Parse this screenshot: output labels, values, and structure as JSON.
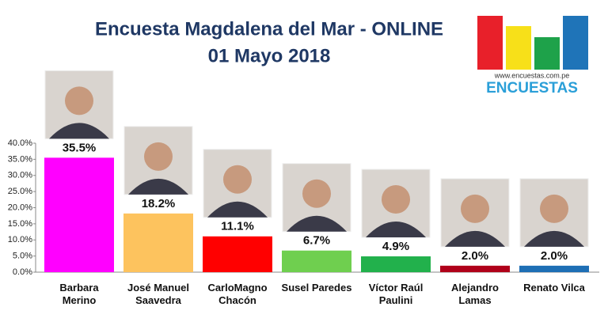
{
  "chart_data": {
    "type": "bar",
    "title": "Encuesta Magdalena del Mar - ONLINE",
    "subtitle": "01 Mayo 2018",
    "logo_url": "www.encuestas.com.pe",
    "logo_name": "ENCUESTAS",
    "categories": [
      "Barbara\nMerino",
      "José Manuel\nSaavedra",
      "CarloMagno\nChacón",
      "Susel Paredes",
      "Víctor Raúl\nPaulini",
      "Alejandro\nLamas",
      "Renato Vilca"
    ],
    "values": [
      35.5,
      18.2,
      11.1,
      6.7,
      4.9,
      2.0,
      2.0
    ],
    "value_labels": [
      "35.5%",
      "18.2%",
      "11.1%",
      "6.7%",
      "4.9%",
      "2.0%",
      "2.0%"
    ],
    "colors": [
      "#ff00ff",
      "#fdc35e",
      "#ff0000",
      "#6fcf4f",
      "#22b14c",
      "#b0001a",
      "#1e6fb5"
    ],
    "ylim": [
      0,
      40
    ],
    "yticks": [
      {
        "value": 0,
        "label": "0.0%"
      },
      {
        "value": 5,
        "label": "5.0%"
      },
      {
        "value": 10,
        "label": "10.0%"
      },
      {
        "value": 15,
        "label": "15.0%"
      },
      {
        "value": 20,
        "label": "20.0%"
      },
      {
        "value": 25,
        "label": "25.0%"
      },
      {
        "value": 30,
        "label": "30.0%"
      },
      {
        "value": 35,
        "label": "35.0%"
      },
      {
        "value": 40,
        "label": "40.0%"
      }
    ],
    "grid": false
  }
}
